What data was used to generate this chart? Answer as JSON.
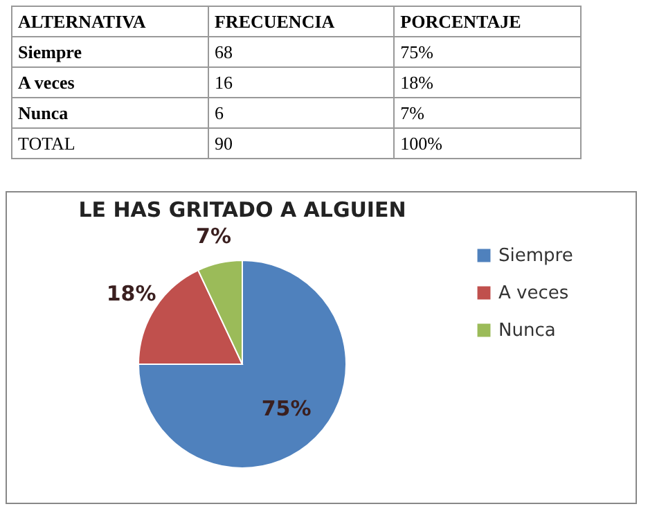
{
  "chart_data": {
    "type": "pie",
    "title": "LE HAS GRITADO A ALGUIEN",
    "categories": [
      "Siempre",
      "A veces",
      "Nunca"
    ],
    "values": [
      75,
      18,
      7
    ],
    "value_labels": [
      "75%",
      "18%",
      "7%"
    ],
    "colors": [
      "#4f81bd",
      "#c0504d",
      "#9bbb59"
    ],
    "legend": "right",
    "annotations": [
      "ALTERNATIVA",
      "FRECUENCIA",
      "PORCENTAJE",
      "68",
      "16",
      "6",
      "TOTAL",
      "90",
      "100%"
    ]
  }
}
